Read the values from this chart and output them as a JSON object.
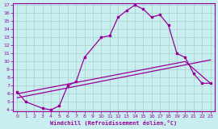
{
  "xlabel": "Windchill (Refroidissement éolien,°C)",
  "xlim": [
    -0.5,
    23.5
  ],
  "ylim": [
    3.8,
    17.2
  ],
  "xticks": [
    0,
    1,
    2,
    3,
    4,
    5,
    6,
    7,
    8,
    9,
    10,
    11,
    12,
    13,
    14,
    15,
    16,
    17,
    18,
    19,
    20,
    21,
    22,
    23
  ],
  "yticks": [
    4,
    5,
    6,
    7,
    8,
    9,
    10,
    11,
    12,
    13,
    14,
    15,
    16,
    17
  ],
  "background_color": "#c8eef0",
  "line_color": "#990099",
  "grid_color": "#aacccc",
  "line1_x": [
    0,
    1,
    3,
    4,
    5,
    6,
    7,
    8,
    10,
    11,
    12,
    13,
    14,
    15,
    16,
    17,
    18,
    19,
    20,
    21,
    22,
    23
  ],
  "line1_y": [
    6.2,
    5.0,
    4.2,
    4.0,
    4.5,
    7.0,
    7.5,
    10.5,
    13.0,
    13.2,
    15.5,
    16.3,
    17.0,
    16.5,
    15.5,
    15.8,
    14.5,
    11.0,
    10.5,
    8.5,
    7.3,
    7.3
  ],
  "line2_x": [
    0,
    23
  ],
  "line2_y": [
    5.5,
    10.2
  ],
  "line3_x": [
    0,
    20,
    23
  ],
  "line3_y": [
    6.0,
    10.0,
    7.3
  ]
}
